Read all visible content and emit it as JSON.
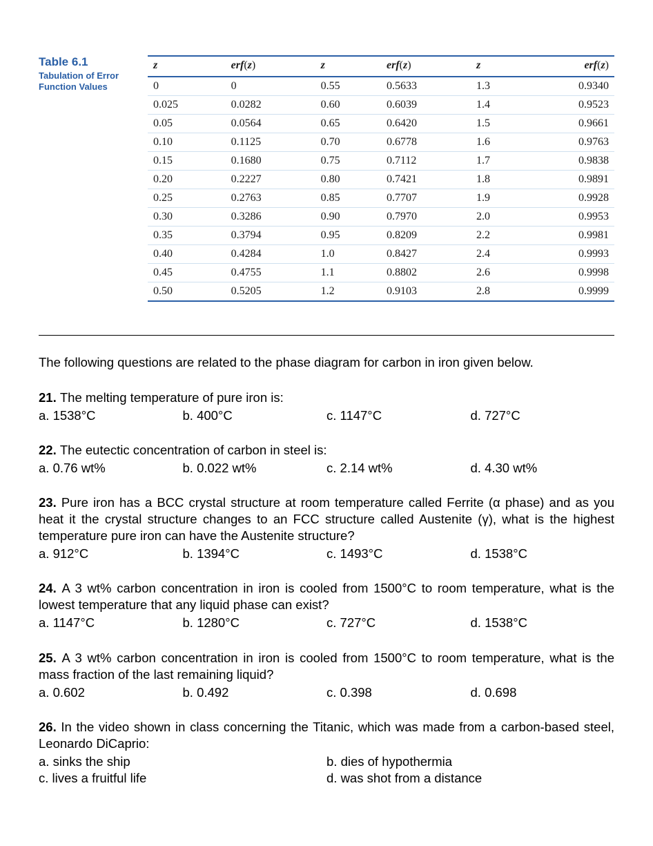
{
  "table": {
    "number": "Table 6.1",
    "caption": "Tabulation of Error Function Values",
    "headers": [
      "z",
      "erf(z)",
      "z",
      "erf(z)",
      "z",
      "erf(z)"
    ],
    "rows": [
      [
        "0",
        "0",
        "0.55",
        "0.5633",
        "1.3",
        "0.9340"
      ],
      [
        "0.025",
        "0.0282",
        "0.60",
        "0.6039",
        "1.4",
        "0.9523"
      ],
      [
        "0.05",
        "0.0564",
        "0.65",
        "0.6420",
        "1.5",
        "0.9661"
      ],
      [
        "0.10",
        "0.1125",
        "0.70",
        "0.6778",
        "1.6",
        "0.9763"
      ],
      [
        "0.15",
        "0.1680",
        "0.75",
        "0.7112",
        "1.7",
        "0.9838"
      ],
      [
        "0.20",
        "0.2227",
        "0.80",
        "0.7421",
        "1.8",
        "0.9891"
      ],
      [
        "0.25",
        "0.2763",
        "0.85",
        "0.7707",
        "1.9",
        "0.9928"
      ],
      [
        "0.30",
        "0.3286",
        "0.90",
        "0.7970",
        "2.0",
        "0.9953"
      ],
      [
        "0.35",
        "0.3794",
        "0.95",
        "0.8209",
        "2.2",
        "0.9981"
      ],
      [
        "0.40",
        "0.4284",
        "1.0",
        "0.8427",
        "2.4",
        "0.9993"
      ],
      [
        "0.45",
        "0.4755",
        "1.1",
        "0.8802",
        "2.6",
        "0.9998"
      ],
      [
        "0.50",
        "0.5205",
        "1.2",
        "0.9103",
        "2.8",
        "0.9999"
      ]
    ],
    "colors": {
      "accent": "#2a5fa6",
      "row_divider": "#cfe0ef",
      "text": "#1a1a1a"
    },
    "font": {
      "table_family": "Times New Roman",
      "table_size_pt": 12,
      "label_family": "Arial",
      "label_size_pt": 10
    }
  },
  "intro": "The following questions are related to the phase diagram for carbon in iron given below.",
  "questions": [
    {
      "num": "21.",
      "text": "The melting temperature of pure iron is:",
      "layout": "four",
      "options": [
        "a. 1538°C",
        "b. 400°C",
        "c. 1147°C",
        "d. 727°C"
      ]
    },
    {
      "num": "22.",
      "text": "The eutectic concentration of carbon in steel is:",
      "layout": "four",
      "options": [
        "a. 0.76 wt%",
        "b. 0.022 wt%",
        "c. 2.14 wt%",
        "d. 4.30 wt%"
      ]
    },
    {
      "num": "23.",
      "text": "Pure iron has a BCC crystal structure at room temperature called Ferrite (α phase) and as you heat it the crystal structure changes to an FCC structure called Austenite (γ), what is the highest temperature pure iron can have the Austenite structure?",
      "layout": "four",
      "justify": true,
      "options": [
        "a. 912°C",
        "b. 1394°C",
        "c. 1493°C",
        "d. 1538°C"
      ]
    },
    {
      "num": "24.",
      "text": "A 3 wt% carbon concentration in iron is cooled from 1500°C to room temperature, what is the lowest temperature that any liquid phase can exist?",
      "layout": "four",
      "justify": true,
      "options": [
        "a. 1147°C",
        "b. 1280°C",
        "c. 727°C",
        "d. 1538°C"
      ]
    },
    {
      "num": "25.",
      "text": "A 3 wt% carbon concentration in iron is cooled from 1500°C to room temperature, what is the mass fraction of the last remaining liquid?",
      "layout": "four",
      "justify": true,
      "options": [
        "a. 0.602",
        "b. 0.492",
        "c. 0.398",
        "d. 0.698"
      ]
    },
    {
      "num": "26.",
      "text": "In the video shown in class concerning the Titanic, which was made from a carbon-based steel, Leonardo DiCaprio:",
      "layout": "two",
      "justify": true,
      "options": [
        "a. sinks the ship",
        "b. dies of hypothermia",
        "c. lives a fruitful life",
        "d. was shot from a distance"
      ]
    }
  ],
  "body_font": {
    "family": "Arial",
    "size_pt": 14,
    "color": "#000000"
  }
}
